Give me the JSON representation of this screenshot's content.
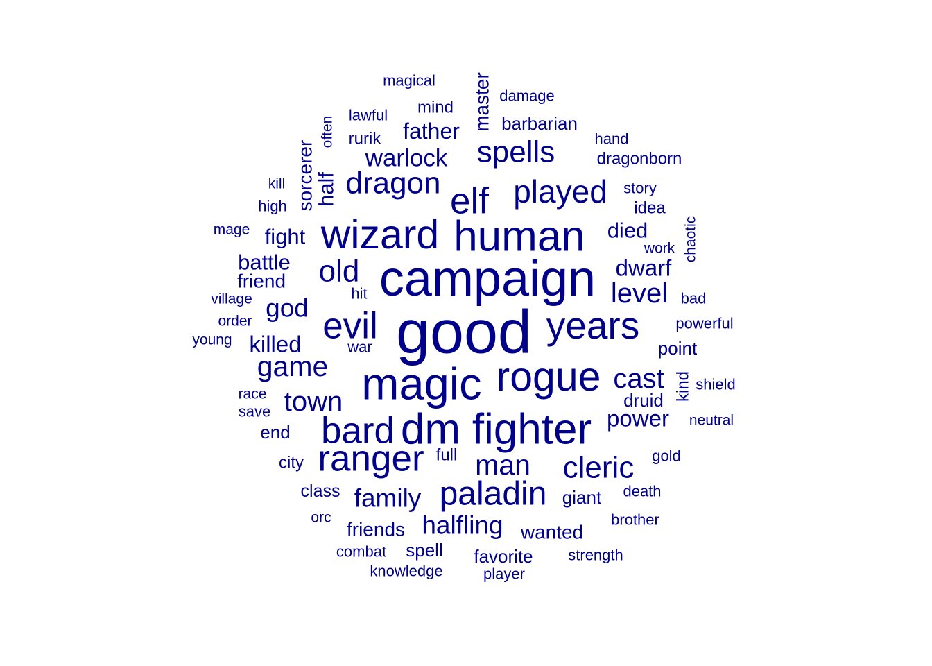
{
  "chart_data": {
    "type": "wordcloud",
    "color": "#00008B",
    "words": [
      {
        "text": "good",
        "size": 1.0,
        "rotated": false
      },
      {
        "text": "campaign",
        "size": 0.82,
        "rotated": false
      },
      {
        "text": "magic",
        "size": 0.74,
        "rotated": false
      },
      {
        "text": "human",
        "size": 0.7,
        "rotated": false
      },
      {
        "text": "fighter",
        "size": 0.7,
        "rotated": false
      },
      {
        "text": "dm",
        "size": 0.7,
        "rotated": false
      },
      {
        "text": "wizard",
        "size": 0.67,
        "rotated": false
      },
      {
        "text": "rogue",
        "size": 0.67,
        "rotated": false
      },
      {
        "text": "years",
        "size": 0.62,
        "rotated": false
      },
      {
        "text": "evil",
        "size": 0.6,
        "rotated": false
      },
      {
        "text": "bard",
        "size": 0.6,
        "rotated": false
      },
      {
        "text": "ranger",
        "size": 0.6,
        "rotated": false
      },
      {
        "text": "elf",
        "size": 0.6,
        "rotated": false
      },
      {
        "text": "paladin",
        "size": 0.55,
        "rotated": false
      },
      {
        "text": "played",
        "size": 0.52,
        "rotated": false
      },
      {
        "text": "cleric",
        "size": 0.5,
        "rotated": false
      },
      {
        "text": "old",
        "size": 0.5,
        "rotated": false
      },
      {
        "text": "dragon",
        "size": 0.5,
        "rotated": false
      },
      {
        "text": "spells",
        "size": 0.5,
        "rotated": false
      },
      {
        "text": "game",
        "size": 0.47,
        "rotated": false
      },
      {
        "text": "man",
        "size": 0.47,
        "rotated": false
      },
      {
        "text": "cast",
        "size": 0.45,
        "rotated": false
      },
      {
        "text": "level",
        "size": 0.45,
        "rotated": false
      },
      {
        "text": "town",
        "size": 0.45,
        "rotated": false
      },
      {
        "text": "family",
        "size": 0.42,
        "rotated": false
      },
      {
        "text": "halfling",
        "size": 0.42,
        "rotated": false
      },
      {
        "text": "god",
        "size": 0.42,
        "rotated": false
      },
      {
        "text": "warlock",
        "size": 0.4,
        "rotated": false
      },
      {
        "text": "dwarf",
        "size": 0.38,
        "rotated": false
      },
      {
        "text": "power",
        "size": 0.38,
        "rotated": false
      },
      {
        "text": "killed",
        "size": 0.38,
        "rotated": false
      },
      {
        "text": "father",
        "size": 0.36,
        "rotated": false
      },
      {
        "text": "died",
        "size": 0.35,
        "rotated": false
      },
      {
        "text": "fight",
        "size": 0.35,
        "rotated": false
      },
      {
        "text": "battle",
        "size": 0.35,
        "rotated": false
      },
      {
        "text": "half",
        "size": 0.35,
        "rotated": true
      },
      {
        "text": "master",
        "size": 0.32,
        "rotated": true
      },
      {
        "text": "sorcerer",
        "size": 0.32,
        "rotated": true
      },
      {
        "text": "wanted",
        "size": 0.32,
        "rotated": false
      },
      {
        "text": "friends",
        "size": 0.32,
        "rotated": false
      },
      {
        "text": "friend",
        "size": 0.32,
        "rotated": false
      },
      {
        "text": "giant",
        "size": 0.3,
        "rotated": false
      },
      {
        "text": "barbarian",
        "size": 0.3,
        "rotated": false
      },
      {
        "text": "favorite",
        "size": 0.3,
        "rotated": false
      },
      {
        "text": "spell",
        "size": 0.3,
        "rotated": false
      },
      {
        "text": "point",
        "size": 0.3,
        "rotated": false
      },
      {
        "text": "druid",
        "size": 0.3,
        "rotated": false
      },
      {
        "text": "end",
        "size": 0.3,
        "rotated": false
      },
      {
        "text": "class",
        "size": 0.28,
        "rotated": false
      },
      {
        "text": "mind",
        "size": 0.27,
        "rotated": false
      },
      {
        "text": "full",
        "size": 0.27,
        "rotated": false
      },
      {
        "text": "city",
        "size": 0.27,
        "rotated": false
      },
      {
        "text": "dragonborn",
        "size": 0.27,
        "rotated": false
      },
      {
        "text": "kind",
        "size": 0.27,
        "rotated": true
      },
      {
        "text": "idea",
        "size": 0.27,
        "rotated": false
      },
      {
        "text": "rurik",
        "size": 0.27,
        "rotated": false
      },
      {
        "text": "high",
        "size": 0.25,
        "rotated": false
      },
      {
        "text": "magical",
        "size": 0.25,
        "rotated": false
      },
      {
        "text": "damage",
        "size": 0.25,
        "rotated": false
      },
      {
        "text": "lawful",
        "size": 0.25,
        "rotated": false
      },
      {
        "text": "story",
        "size": 0.25,
        "rotated": false
      },
      {
        "text": "hand",
        "size": 0.25,
        "rotated": false
      },
      {
        "text": "war",
        "size": 0.25,
        "rotated": false
      },
      {
        "text": "hit",
        "size": 0.25,
        "rotated": false
      },
      {
        "text": "powerful",
        "size": 0.25,
        "rotated": false
      },
      {
        "text": "shield",
        "size": 0.25,
        "rotated": false
      },
      {
        "text": "gold",
        "size": 0.25,
        "rotated": false
      },
      {
        "text": "death",
        "size": 0.25,
        "rotated": false
      },
      {
        "text": "bad",
        "size": 0.25,
        "rotated": false
      },
      {
        "text": "knowledge",
        "size": 0.25,
        "rotated": false
      },
      {
        "text": "strength",
        "size": 0.25,
        "rotated": false
      },
      {
        "text": "brother",
        "size": 0.25,
        "rotated": false
      },
      {
        "text": "save",
        "size": 0.25,
        "rotated": false
      },
      {
        "text": "combat",
        "size": 0.25,
        "rotated": false
      },
      {
        "text": "player",
        "size": 0.25,
        "rotated": false
      },
      {
        "text": "order",
        "size": 0.24,
        "rotated": false
      },
      {
        "text": "race",
        "size": 0.24,
        "rotated": false
      },
      {
        "text": "village",
        "size": 0.24,
        "rotated": false
      },
      {
        "text": "mage",
        "size": 0.24,
        "rotated": false
      },
      {
        "text": "kill",
        "size": 0.24,
        "rotated": false
      },
      {
        "text": "young",
        "size": 0.24,
        "rotated": false
      },
      {
        "text": "orc",
        "size": 0.24,
        "rotated": false
      },
      {
        "text": "work",
        "size": 0.24,
        "rotated": false
      },
      {
        "text": "neutral",
        "size": 0.24,
        "rotated": false
      },
      {
        "text": "often",
        "size": 0.24,
        "rotated": true
      },
      {
        "text": "chaotic",
        "size": 0.24,
        "rotated": true
      }
    ]
  }
}
